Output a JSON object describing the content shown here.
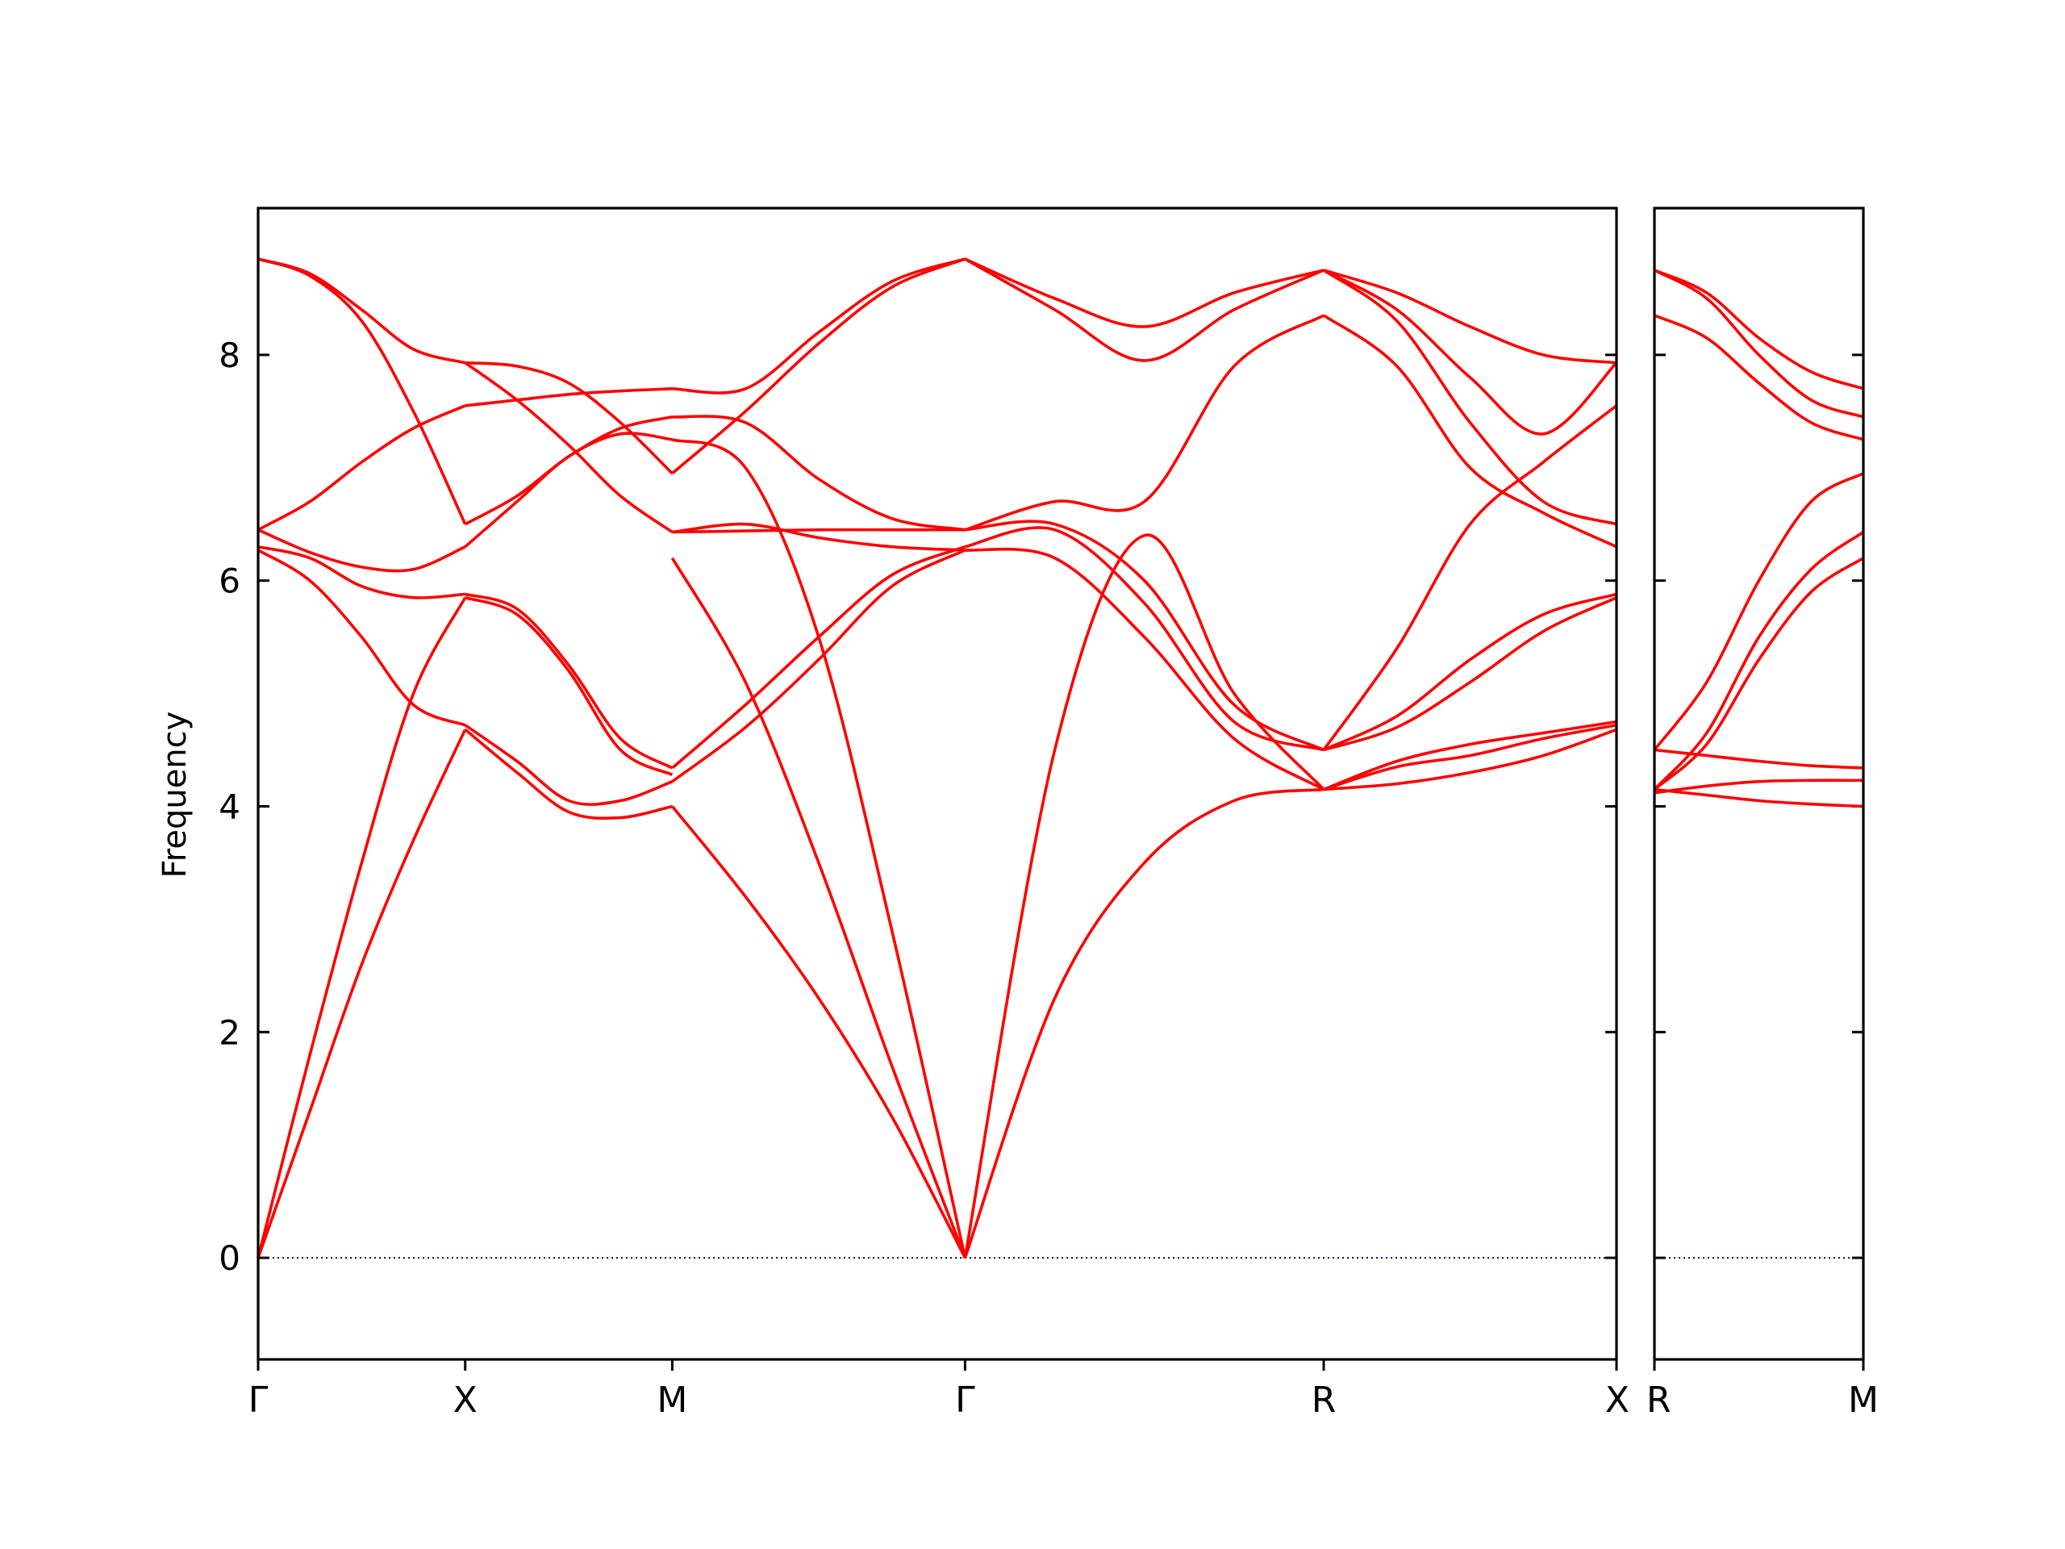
{
  "chart_data": {
    "type": "line",
    "title": "",
    "xlabel": "",
    "ylabel": "Frequency",
    "ylim": [
      -0.9,
      9.3
    ],
    "yticks": [
      0,
      2,
      4,
      6,
      8
    ],
    "grid": false,
    "legend": "none",
    "line_color": "#ff0000",
    "zero_line_color": "#00008b",
    "panels": [
      {
        "path": [
          "Γ",
          "X",
          "M",
          "Γ",
          "R",
          "X"
        ],
        "node_positions": [
          0,
          0.5,
          1.0,
          1.707,
          2.573,
          3.28
        ],
        "xlim": [
          0,
          3.28
        ]
      },
      {
        "path": [
          "R",
          "M"
        ],
        "node_positions": [
          0,
          0.5
        ],
        "xlim": [
          0,
          0.5
        ]
      }
    ],
    "segments": [
      {
        "from": "Γ",
        "to": "X",
        "panel": 0,
        "x_range": [
          0,
          0.5
        ],
        "bands": [
          [
            0,
            1.3,
            2.6,
            3.7,
            4.68
          ],
          [
            0,
            1.8,
            3.5,
            5.0,
            5.85
          ],
          [
            6.27,
            6.0,
            5.5,
            4.9,
            4.72
          ],
          [
            6.3,
            6.2,
            5.95,
            5.85,
            5.88
          ],
          [
            6.45,
            6.25,
            6.12,
            6.1,
            6.3
          ],
          [
            6.45,
            6.7,
            7.05,
            7.35,
            7.55
          ],
          [
            8.85,
            8.7,
            8.3,
            7.5,
            6.5
          ],
          [
            8.85,
            8.72,
            8.4,
            8.05,
            7.93
          ]
        ]
      },
      {
        "from": "X",
        "to": "M",
        "panel": 0,
        "x_range": [
          0.5,
          1.0
        ],
        "bands": [
          [
            4.68,
            4.3,
            3.95,
            3.9,
            4.0
          ],
          [
            4.72,
            4.4,
            4.05,
            4.05,
            4.22
          ],
          [
            5.85,
            5.7,
            5.2,
            4.5,
            4.28
          ],
          [
            5.88,
            5.75,
            5.25,
            4.6,
            4.34
          ],
          [
            6.3,
            6.7,
            7.1,
            7.3,
            7.25
          ],
          [
            6.5,
            6.75,
            7.1,
            7.35,
            7.45
          ],
          [
            7.55,
            7.6,
            7.65,
            7.68,
            7.7
          ],
          [
            7.93,
            7.6,
            7.2,
            6.75,
            6.43
          ],
          [
            7.93,
            7.9,
            7.75,
            7.4,
            6.95
          ]
        ]
      },
      {
        "from": "M",
        "to": "Γ",
        "panel": 0,
        "x_range": [
          1.0,
          1.707
        ],
        "bands": [
          [
            4.0,
            3.2,
            2.3,
            1.25,
            0
          ],
          [
            4.22,
            4.7,
            5.3,
            5.95,
            6.27
          ],
          [
            4.34,
            4.9,
            5.5,
            6.05,
            6.3
          ],
          [
            6.2,
            5.1,
            3.5,
            1.7,
            0
          ],
          [
            7.25,
            7.0,
            5.5,
            2.9,
            0
          ],
          [
            6.43,
            6.44,
            6.45,
            6.45,
            6.45
          ],
          [
            6.43,
            6.5,
            6.38,
            6.3,
            6.27
          ],
          [
            7.45,
            7.4,
            6.9,
            6.55,
            6.45
          ],
          [
            6.95,
            7.5,
            8.1,
            8.6,
            8.85
          ],
          [
            7.7,
            7.7,
            8.2,
            8.65,
            8.85
          ]
        ]
      },
      {
        "from": "Γ",
        "to": "R",
        "panel": 0,
        "x_range": [
          1.707,
          2.573
        ],
        "bands": [
          [
            0,
            2.3,
            3.5,
            4.05,
            4.15
          ],
          [
            0,
            4.5,
            6.4,
            5.0,
            4.15
          ],
          [
            6.27,
            6.2,
            5.5,
            4.6,
            4.15
          ],
          [
            6.3,
            6.45,
            5.8,
            4.75,
            4.5
          ],
          [
            6.45,
            6.5,
            6.0,
            4.9,
            4.5
          ],
          [
            6.45,
            6.7,
            6.7,
            7.9,
            8.35
          ],
          [
            8.85,
            8.5,
            8.25,
            8.55,
            8.75
          ],
          [
            8.85,
            8.4,
            7.95,
            8.4,
            8.75
          ]
        ]
      },
      {
        "from": "R",
        "to": "X",
        "panel": 0,
        "x_range": [
          2.573,
          3.28
        ],
        "bands": [
          [
            4.15,
            4.2,
            4.3,
            4.45,
            4.68
          ],
          [
            4.15,
            4.35,
            4.45,
            4.6,
            4.72
          ],
          [
            4.15,
            4.4,
            4.55,
            4.65,
            4.75
          ],
          [
            4.5,
            4.7,
            5.1,
            5.55,
            5.85
          ],
          [
            4.5,
            4.8,
            5.3,
            5.7,
            5.88
          ],
          [
            4.5,
            5.4,
            6.5,
            7.05,
            7.55
          ],
          [
            8.35,
            7.9,
            7.0,
            6.6,
            6.3
          ],
          [
            8.75,
            8.3,
            7.4,
            6.7,
            6.5
          ],
          [
            8.75,
            8.4,
            7.8,
            7.3,
            7.93
          ],
          [
            8.75,
            8.55,
            8.25,
            8.0,
            7.93
          ]
        ]
      },
      {
        "from": "R",
        "to": "M",
        "panel": 1,
        "x_range": [
          0,
          0.5
        ],
        "bands": [
          [
            4.15,
            4.1,
            4.05,
            4.02,
            4.0
          ],
          [
            4.12,
            4.18,
            4.22,
            4.23,
            4.23
          ],
          [
            4.5,
            4.45,
            4.4,
            4.36,
            4.34
          ],
          [
            4.15,
            4.55,
            5.3,
            5.9,
            6.2
          ],
          [
            4.15,
            4.65,
            5.5,
            6.1,
            6.43
          ],
          [
            4.5,
            5.1,
            6.0,
            6.7,
            6.95
          ],
          [
            8.35,
            8.15,
            7.75,
            7.4,
            7.25
          ],
          [
            8.75,
            8.5,
            8.0,
            7.6,
            7.45
          ],
          [
            8.75,
            8.55,
            8.15,
            7.85,
            7.7
          ]
        ]
      }
    ]
  }
}
